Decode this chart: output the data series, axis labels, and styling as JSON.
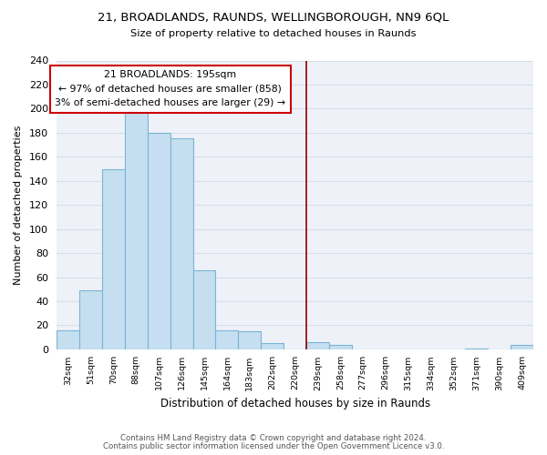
{
  "title": "21, BROADLANDS, RAUNDS, WELLINGBOROUGH, NN9 6QL",
  "subtitle": "Size of property relative to detached houses in Raunds",
  "xlabel": "Distribution of detached houses by size in Raunds",
  "ylabel": "Number of detached properties",
  "bar_color": "#c5dff0",
  "bar_edge_color": "#7ab4d4",
  "axes_facecolor": "#eef2f8",
  "fig_facecolor": "#ffffff",
  "grid_color": "#d8dde8",
  "bins": [
    "32sqm",
    "51sqm",
    "70sqm",
    "88sqm",
    "107sqm",
    "126sqm",
    "145sqm",
    "164sqm",
    "183sqm",
    "202sqm",
    "220sqm",
    "239sqm",
    "258sqm",
    "277sqm",
    "296sqm",
    "315sqm",
    "334sqm",
    "352sqm",
    "371sqm",
    "390sqm",
    "409sqm"
  ],
  "values": [
    16,
    49,
    150,
    201,
    180,
    175,
    66,
    16,
    15,
    5,
    0,
    6,
    4,
    0,
    0,
    0,
    0,
    0,
    1,
    0,
    4
  ],
  "ylim": [
    0,
    240
  ],
  "yticks": [
    0,
    20,
    40,
    60,
    80,
    100,
    120,
    140,
    160,
    180,
    200,
    220,
    240
  ],
  "property_line_x": 10.5,
  "property_line_color": "#8b0000",
  "annotation_title": "21 BROADLANDS: 195sqm",
  "annotation_line1": "← 97% of detached houses are smaller (858)",
  "annotation_line2": "3% of semi-detached houses are larger (29) →",
  "annotation_box_facecolor": "white",
  "annotation_box_edgecolor": "#cc0000",
  "footer_line1": "Contains HM Land Registry data © Crown copyright and database right 2024.",
  "footer_line2": "Contains public sector information licensed under the Open Government Licence v3.0."
}
